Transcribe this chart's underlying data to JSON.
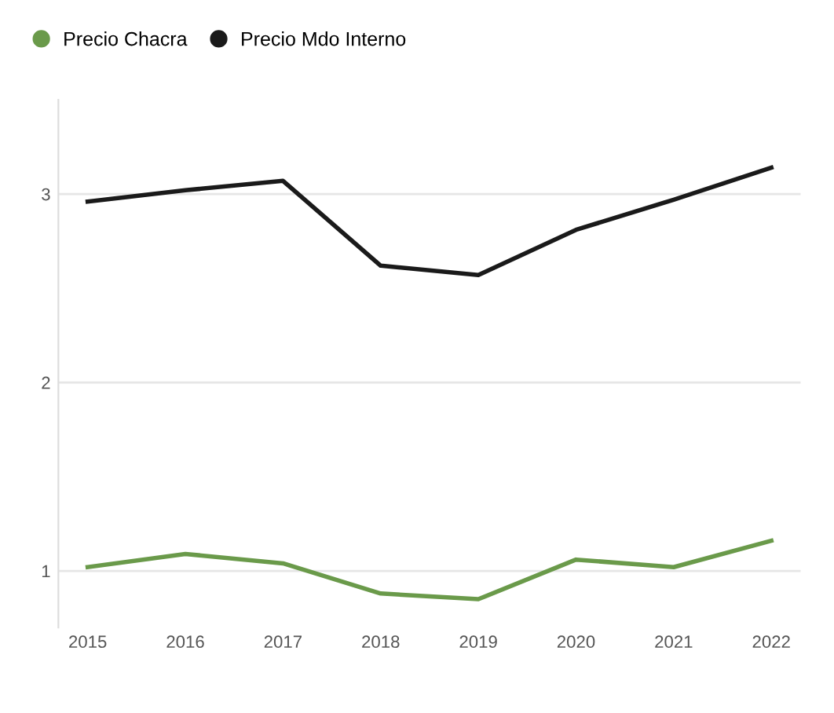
{
  "chart_data": {
    "type": "line",
    "categories": [
      "2015",
      "2016",
      "2017",
      "2018",
      "2019",
      "2020",
      "2021",
      "2022"
    ],
    "series": [
      {
        "name": "Precio Chacra",
        "color": "#6a9a4a",
        "values": [
          1.02,
          1.09,
          1.04,
          0.88,
          0.85,
          1.06,
          1.02,
          1.16
        ]
      },
      {
        "name": "Precio Mdo Interno",
        "color": "#1a1a1a",
        "values": [
          2.96,
          3.02,
          3.07,
          2.62,
          2.57,
          2.81,
          2.97,
          3.14
        ]
      }
    ],
    "ylim": [
      0.7,
      3.5
    ],
    "yticks": [
      1,
      2,
      3
    ],
    "grid": "y",
    "legend": "top left",
    "marker": "none",
    "line_style": "solid"
  }
}
